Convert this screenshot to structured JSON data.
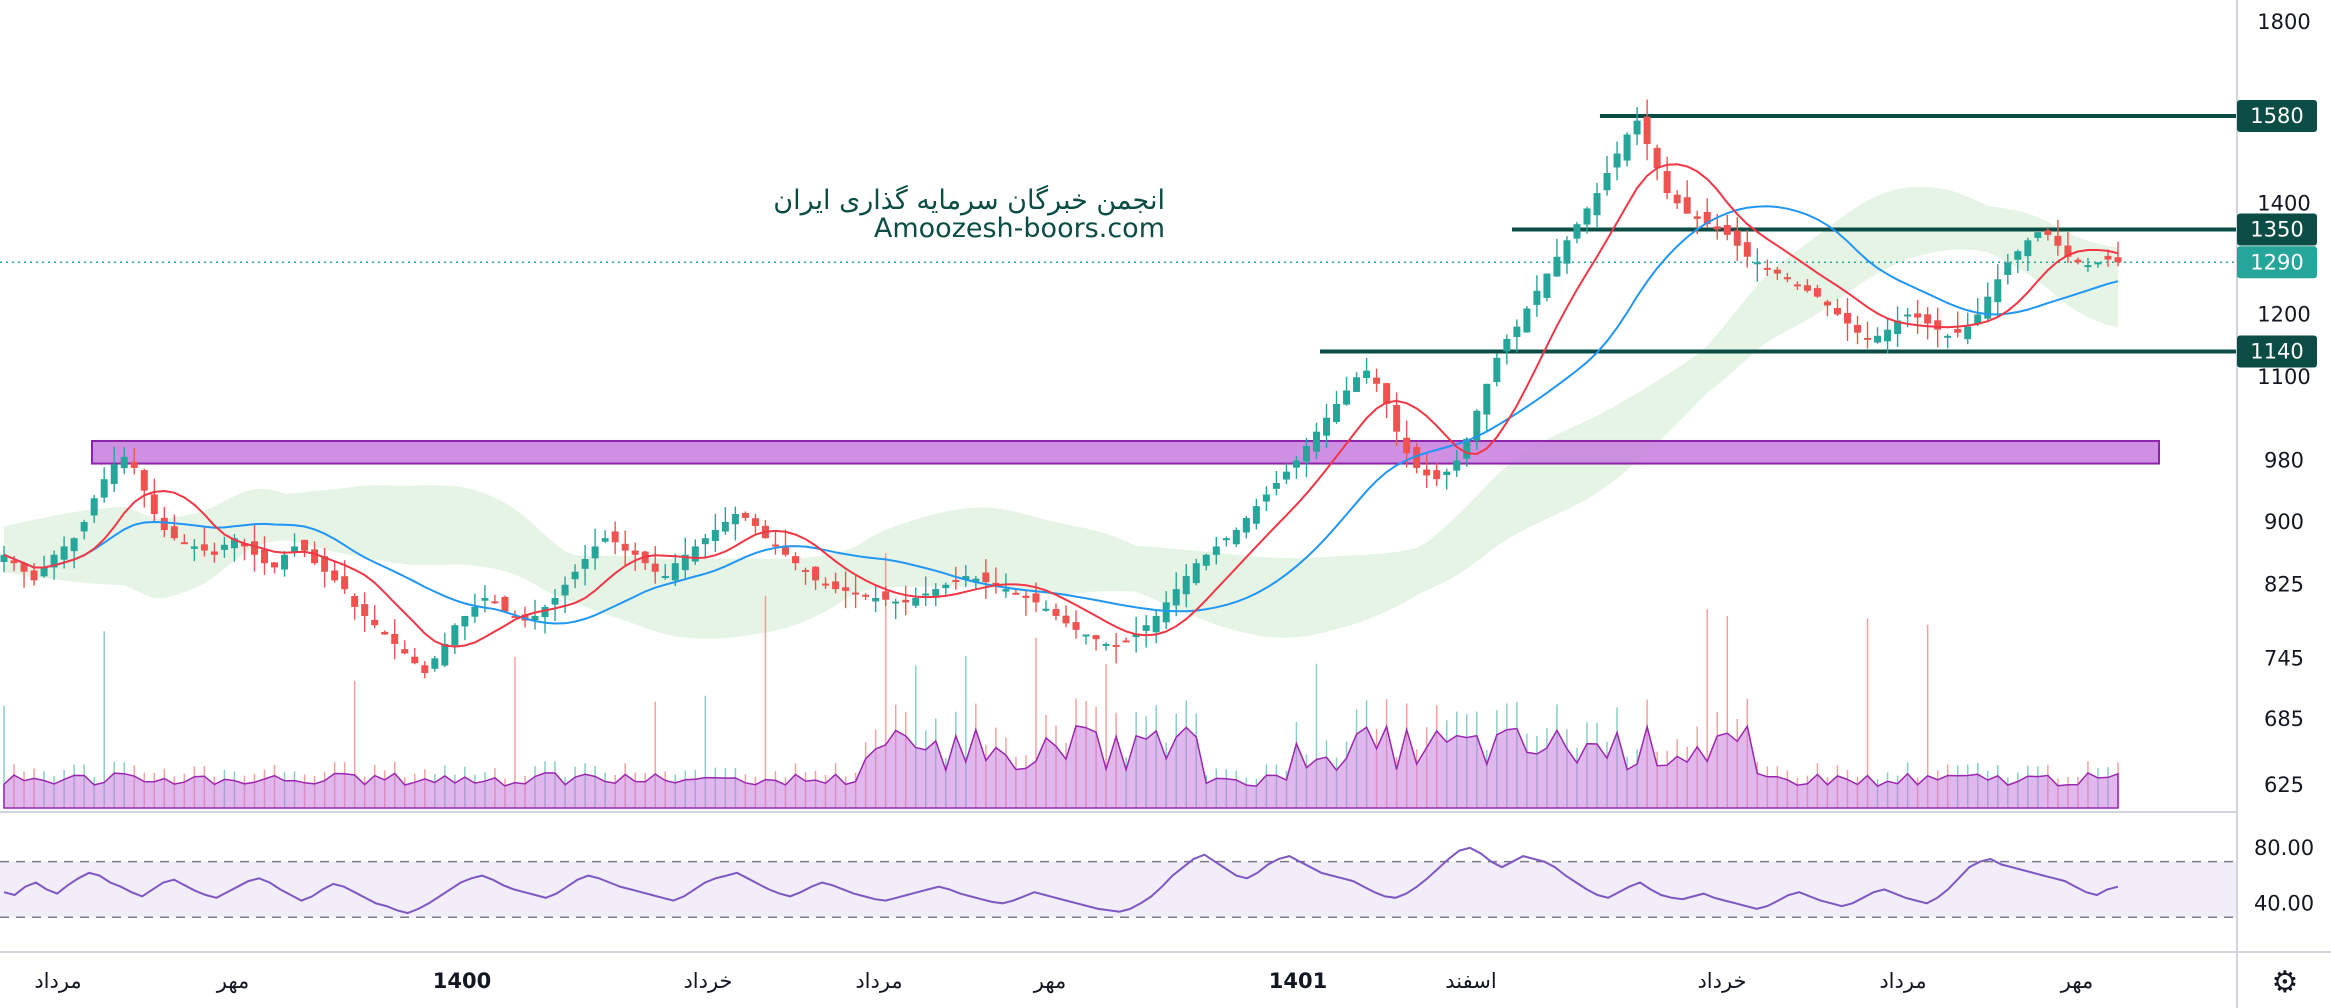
{
  "watermark": {
    "line1": "انجمن خبرگان سرمایه گذاری ایران",
    "line2": "Amoozesh-boors.com"
  },
  "settings_icon": "gear-icon",
  "colors": {
    "up": "#26a69a",
    "down": "#ef5350",
    "ma_fast": "#f23645",
    "ma_slow": "#2196f3",
    "rsi": "#7e57c2",
    "level": "#0b4d44",
    "zone": "#c77dde",
    "last_price": "#26a69a",
    "volume_area": "#c77dde"
  },
  "chart_data": [
    {
      "type": "candlestick",
      "title": "",
      "price_scale": "log",
      "y_ticks": [
        "1800",
        "1400",
        "1200",
        "1100",
        "980",
        "900",
        "825",
        "745",
        "685",
        "625"
      ],
      "x_ticks": [
        "مرداد",
        "مهر",
        "1400",
        "خرداد",
        "مرداد",
        "مهر",
        "1401",
        "اسفند",
        "خرداد",
        "مرداد",
        "مهر"
      ],
      "x_ticks_bold": [
        "1400",
        "1401"
      ],
      "ohlc_close_approx": [
        860,
        850,
        840,
        830,
        845,
        860,
        870,
        880,
        900,
        930,
        955,
        975,
        985,
        970,
        940,
        910,
        890,
        880,
        875,
        870,
        865,
        860,
        872,
        880,
        870,
        860,
        850,
        845,
        860,
        870,
        865,
        850,
        840,
        830,
        820,
        800,
        790,
        780,
        770,
        760,
        750,
        740,
        730,
        745,
        760,
        780,
        790,
        800,
        810,
        805,
        795,
        790,
        785,
        790,
        800,
        810,
        825,
        840,
        855,
        870,
        880,
        875,
        865,
        860,
        850,
        840,
        835,
        850,
        860,
        870,
        880,
        890,
        900,
        910,
        905,
        895,
        880,
        870,
        860,
        850,
        840,
        830,
        825,
        820,
        818,
        815,
        812,
        810,
        808,
        806,
        805,
        810,
        815,
        820,
        825,
        830,
        835,
        832,
        828,
        824,
        820,
        815,
        810,
        805,
        798,
        790,
        782,
        775,
        770,
        765,
        760,
        758,
        762,
        770,
        780,
        790,
        805,
        820,
        835,
        850,
        860,
        870,
        880,
        890,
        905,
        920,
        935,
        950,
        965,
        980,
        1000,
        1020,
        1040,
        1060,
        1080,
        1100,
        1110,
        1090,
        1060,
        1020,
        990,
        970,
        960,
        955,
        965,
        980,
        1010,
        1050,
        1090,
        1130,
        1160,
        1180,
        1210,
        1240,
        1270,
        1300,
        1330,
        1360,
        1390,
        1420,
        1460,
        1500,
        1540,
        1570,
        1520,
        1470,
        1420,
        1400,
        1380,
        1370,
        1360,
        1350,
        1340,
        1320,
        1300,
        1290,
        1280,
        1270,
        1260,
        1250,
        1240,
        1230,
        1215,
        1200,
        1185,
        1170,
        1160,
        1165,
        1175,
        1190,
        1200,
        1195,
        1185,
        1175,
        1165,
        1170,
        1180,
        1200,
        1230,
        1260,
        1290,
        1310,
        1330,
        1345,
        1340,
        1320,
        1300,
        1290,
        1285,
        1290,
        1295,
        1290
      ],
      "horizontal_levels": [
        {
          "label": "1580",
          "value": 1580
        },
        {
          "label": "1350",
          "value": 1350
        },
        {
          "label": "1140",
          "value": 1140
        }
      ],
      "last_price": {
        "label": "1290",
        "value": 1290
      },
      "support_zone": {
        "from": 980,
        "to": 1000
      },
      "moving_averages": [
        "fast (red)",
        "slow (blue)"
      ],
      "ichimoku_cloud": true
    },
    {
      "type": "area",
      "name": "volume",
      "histogram": true
    },
    {
      "type": "line",
      "name": "RSI",
      "y_ticks": [
        "80.00",
        "40.00"
      ],
      "bands": [
        70,
        30
      ],
      "values": [
        48,
        46,
        52,
        55,
        50,
        47,
        53,
        58,
        62,
        60,
        55,
        52,
        48,
        45,
        50,
        55,
        57,
        53,
        49,
        46,
        44,
        48,
        52,
        56,
        58,
        55,
        50,
        46,
        42,
        45,
        50,
        54,
        52,
        48,
        44,
        40,
        38,
        35,
        33,
        36,
        40,
        45,
        50,
        55,
        58,
        60,
        57,
        53,
        50,
        48,
        46,
        44,
        47,
        52,
        57,
        60,
        58,
        55,
        52,
        50,
        48,
        46,
        44,
        42,
        45,
        50,
        55,
        58,
        60,
        62,
        58,
        54,
        50,
        47,
        45,
        48,
        52,
        55,
        53,
        50,
        47,
        45,
        43,
        42,
        44,
        46,
        48,
        50,
        52,
        50,
        47,
        45,
        43,
        41,
        40,
        42,
        45,
        48,
        46,
        44,
        42,
        40,
        38,
        36,
        35,
        34,
        36,
        40,
        45,
        52,
        60,
        66,
        72,
        75,
        70,
        65,
        60,
        58,
        62,
        68,
        72,
        74,
        70,
        66,
        62,
        60,
        58,
        56,
        52,
        48,
        45,
        44,
        47,
        52,
        58,
        65,
        72,
        78,
        80,
        76,
        70,
        66,
        70,
        74,
        72,
        70,
        66,
        60,
        55,
        50,
        46,
        44,
        48,
        52,
        55,
        50,
        46,
        44,
        43,
        45,
        47,
        44,
        42,
        40,
        38,
        36,
        38,
        42,
        46,
        48,
        45,
        42,
        40,
        38,
        40,
        44,
        48,
        50,
        47,
        44,
        42,
        40,
        44,
        50,
        58,
        66,
        70,
        72,
        68,
        66,
        64,
        62,
        60,
        58,
        56,
        52,
        48,
        46,
        50,
        52
      ]
    }
  ]
}
